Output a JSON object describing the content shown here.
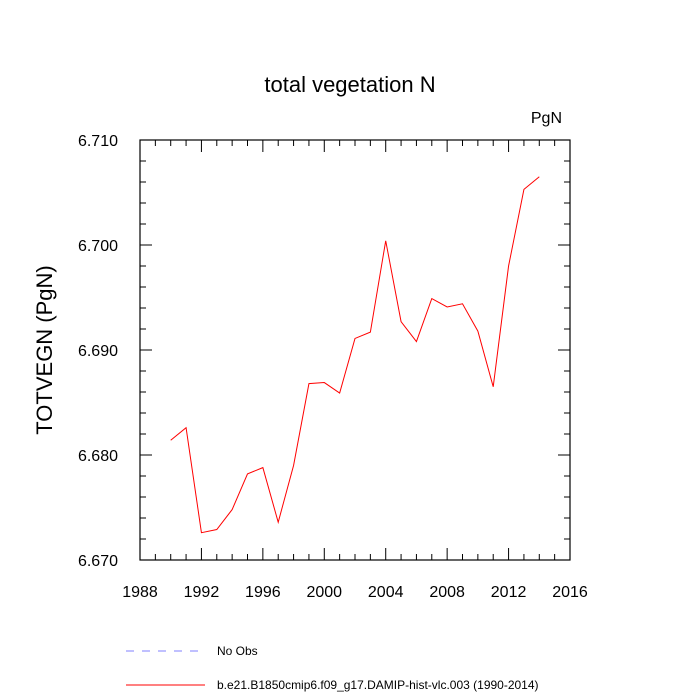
{
  "chart_data": {
    "type": "line",
    "title": "total vegetation N",
    "units_label": "PgN",
    "ylabel": "TOTVEGN  (PgN)",
    "xlabel": "",
    "xlim": [
      1988,
      2016
    ],
    "ylim": [
      6.67,
      6.71
    ],
    "xticks": [
      1988,
      1992,
      1996,
      2000,
      2004,
      2008,
      2012,
      2016
    ],
    "yticks": [
      6.67,
      6.68,
      6.69,
      6.7,
      6.71
    ],
    "ytick_labels": [
      "6.670",
      "6.680",
      "6.690",
      "6.700",
      "6.710"
    ],
    "series": [
      {
        "name": "b.e21.B1850cmip6.f09_g17.DAMIP-hist-vlc.003 (1990-2014)",
        "color": "#ff0000",
        "style": "solid",
        "x": [
          1990,
          1991,
          1992,
          1993,
          1994,
          1995,
          1996,
          1997,
          1998,
          1999,
          2000,
          2001,
          2002,
          2003,
          2004,
          2005,
          2006,
          2007,
          2008,
          2009,
          2010,
          2011,
          2012,
          2013,
          2014
        ],
        "y": [
          6.6814,
          6.6826,
          6.6726,
          6.6729,
          6.6748,
          6.6782,
          6.6788,
          6.6736,
          6.679,
          6.6868,
          6.6869,
          6.6859,
          6.6911,
          6.6917,
          6.7004,
          6.6927,
          6.6908,
          6.6949,
          6.6941,
          6.6944,
          6.6918,
          6.6865,
          6.698,
          6.7053,
          6.7065
        ]
      }
    ],
    "legend": [
      {
        "label": "No Obs",
        "color": "#8080ff",
        "style": "dashed"
      },
      {
        "label": "b.e21.B1850cmip6.f09_g17.DAMIP-hist-vlc.003 (1990-2014)",
        "color": "#ff0000",
        "style": "solid"
      }
    ]
  }
}
